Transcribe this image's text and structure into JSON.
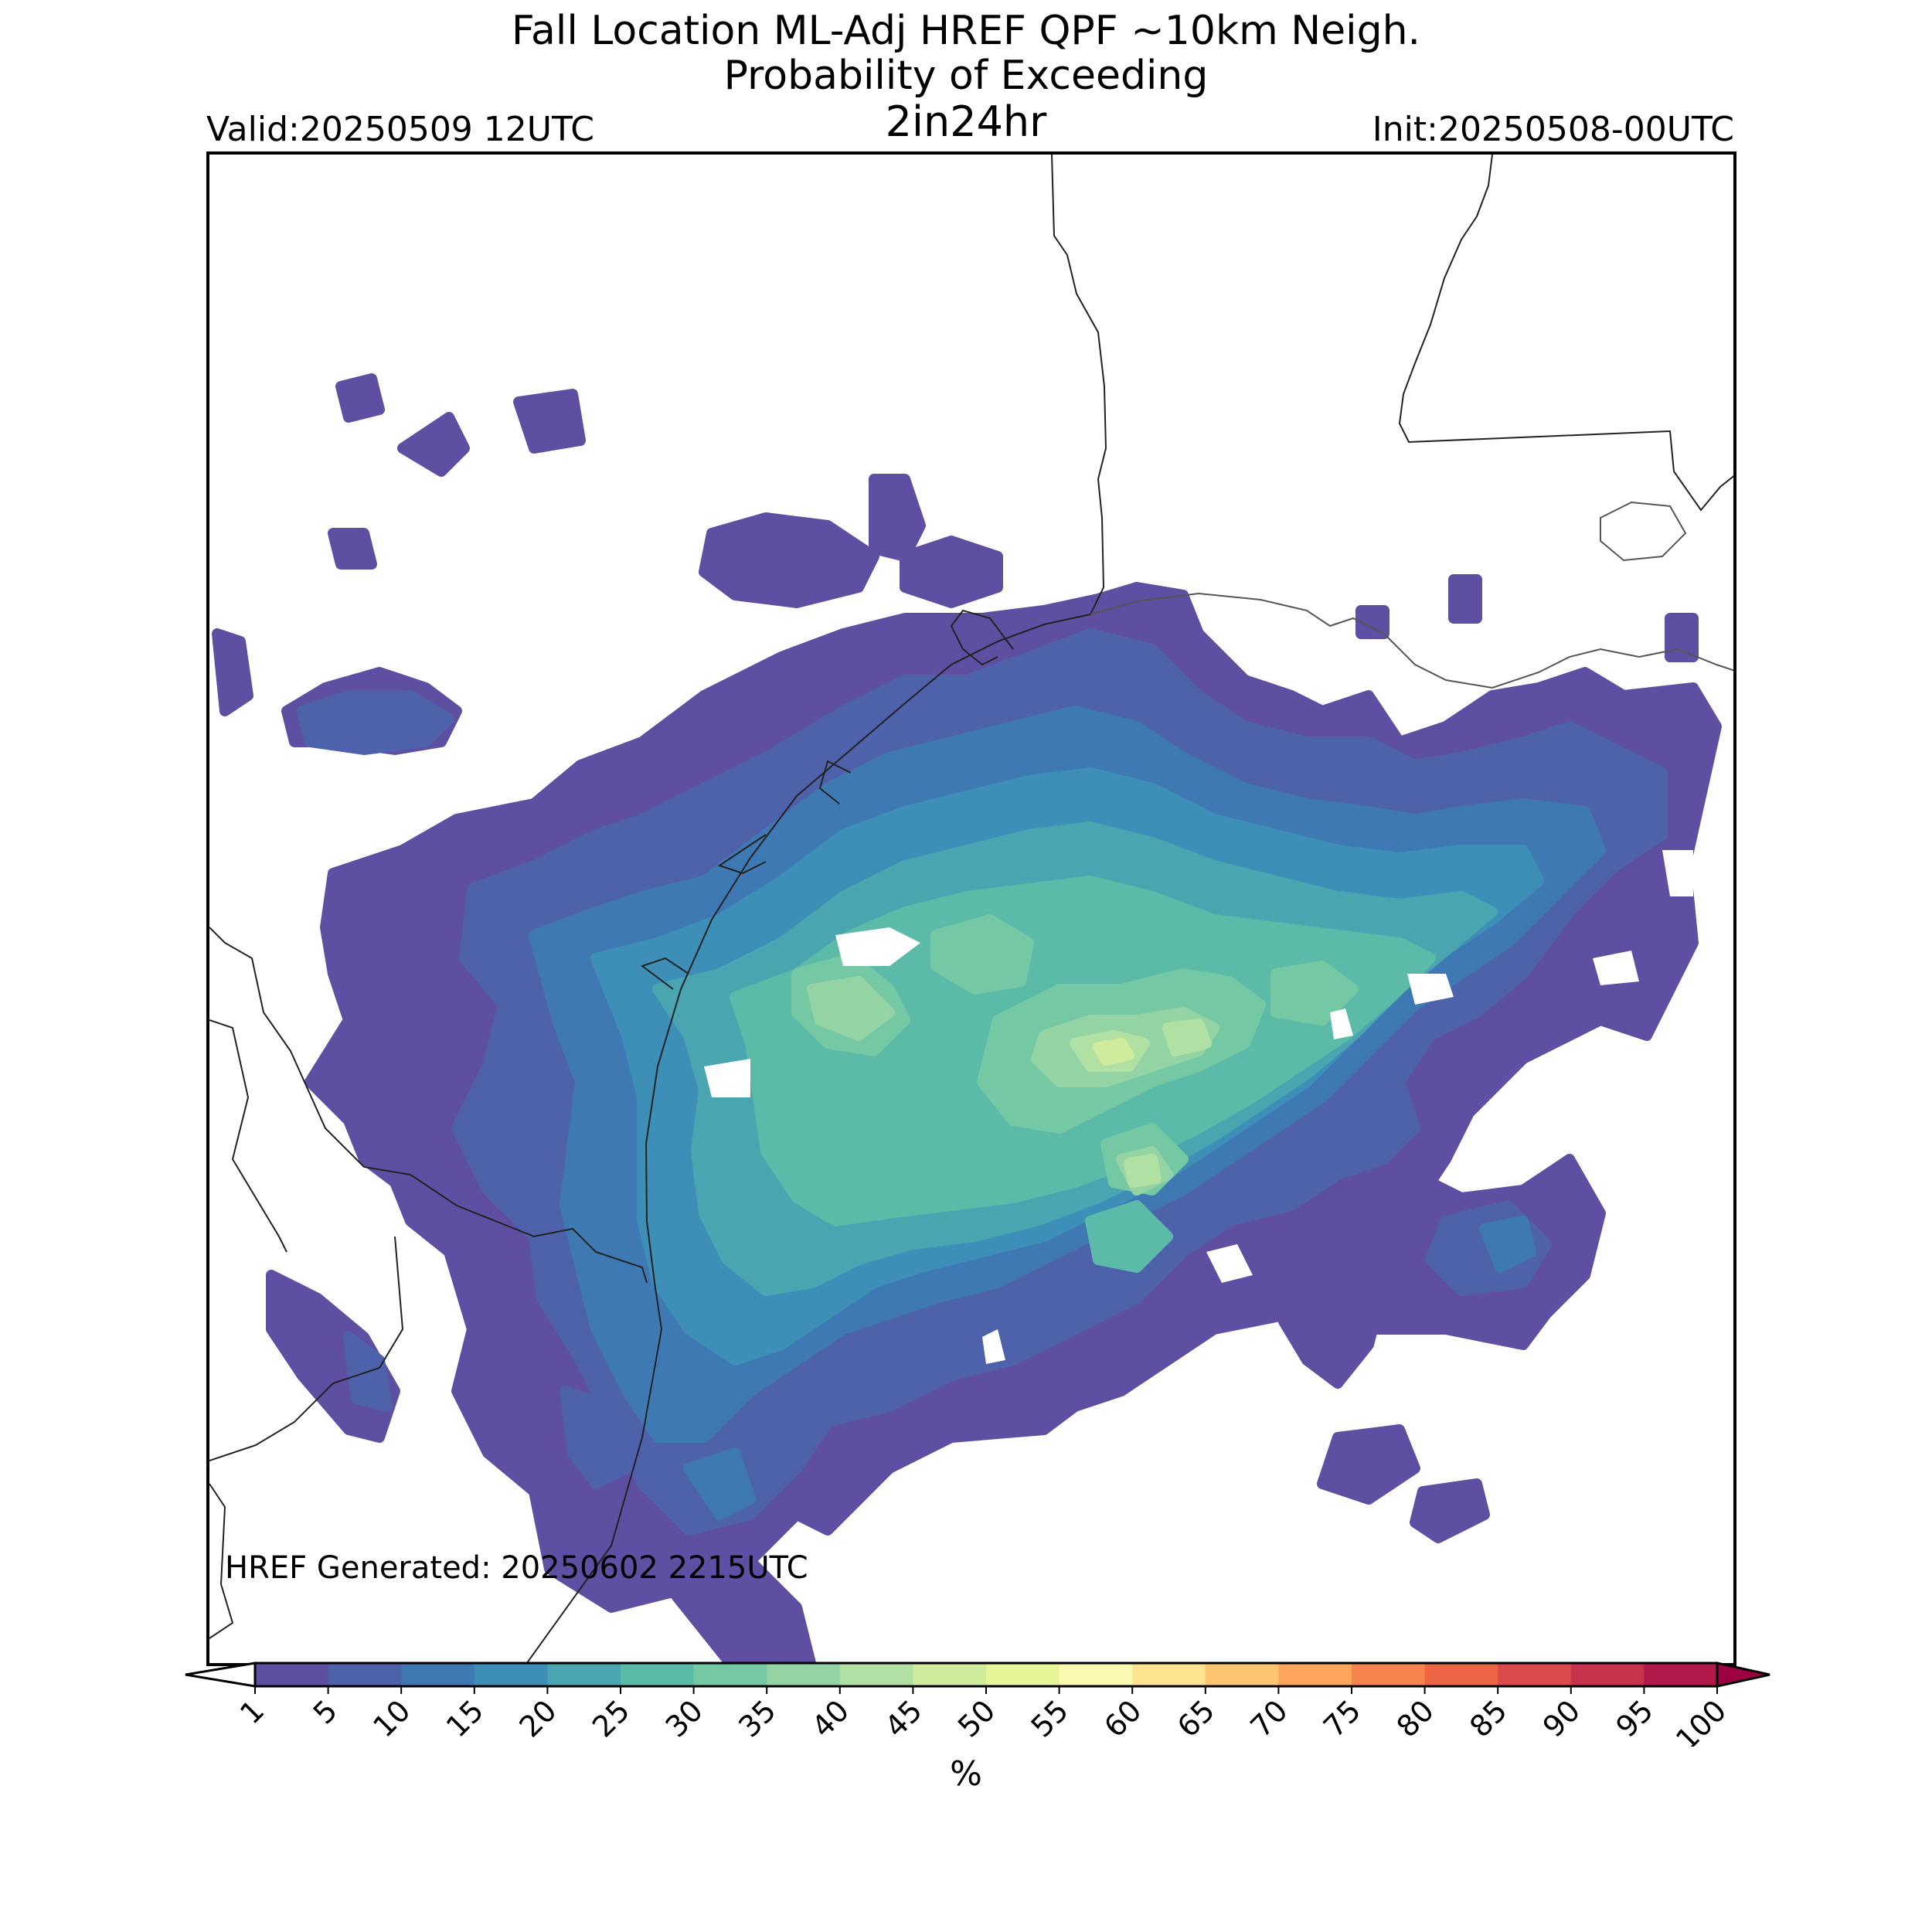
{
  "title": {
    "line1": "Fall Location ML-Adj HREF QPF ~10km Neigh.",
    "line2": "Probability of Exceeding",
    "line3": "2in24hr"
  },
  "valid_label": "Valid:20250509 12UTC",
  "init_label": "Init:20250508-00UTC",
  "generated_label": "HREF Generated: 20250602 2215UTC",
  "colorbar": {
    "ticks": [
      "1",
      "5",
      "10",
      "15",
      "20",
      "25",
      "30",
      "35",
      "40",
      "45",
      "50",
      "55",
      "60",
      "65",
      "70",
      "75",
      "80",
      "85",
      "90",
      "95",
      "100"
    ],
    "colors": [
      "#5e4fa2",
      "#4e62ab",
      "#3f79b4",
      "#3d8fb8",
      "#4aa5b1",
      "#5cbaa9",
      "#75c8a4",
      "#94d4a4",
      "#b1e0a3",
      "#cfec9d",
      "#e6f598",
      "#f9f9b1",
      "#fee391",
      "#fdc472",
      "#fca55d",
      "#f7844e",
      "#ee6545",
      "#dc4b4c",
      "#c7324c",
      "#b0194a",
      "#9e0142"
    ],
    "unit_label": "%"
  },
  "field": {
    "levels": [
      1,
      5,
      10,
      15,
      20,
      25,
      30,
      35,
      40,
      45,
      50
    ],
    "level_colors": [
      "#5e4fa2",
      "#4e62ab",
      "#3f79b4",
      "#3d8fb8",
      "#4aa5b1",
      "#5cbaa9",
      "#75c8a4",
      "#94d4a4",
      "#b1e0a3",
      "#cfec9d",
      "#e6f598"
    ]
  }
}
